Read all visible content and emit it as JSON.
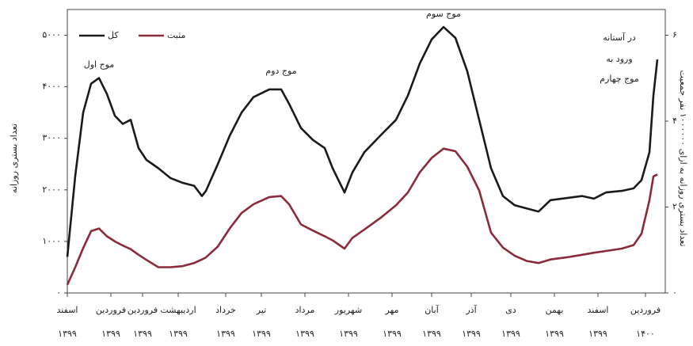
{
  "chart_data": {
    "type": "line",
    "legend": "top-left",
    "y_label": "تعداد بستری روزانه",
    "y2_label": "تعداد بستری روزانه به ازای ۱۰۰۰۰۰۰ نفر جمعیت",
    "annotations": [
      "موج اول",
      "موج دوم",
      "موج سوم",
      "در آستانه",
      "ورود به",
      "موج چهارم"
    ],
    "x": [
      0,
      2,
      4,
      6,
      8,
      10,
      12,
      14,
      16,
      18,
      20,
      23,
      26,
      29,
      32,
      34,
      35,
      38,
      41,
      44,
      47,
      51,
      54,
      56,
      59,
      62,
      65,
      67,
      70,
      72,
      75,
      79,
      83,
      86,
      89,
      92,
      95,
      98,
      101,
      104,
      107,
      110,
      113,
      116,
      119,
      122,
      126,
      130,
      133,
      136,
      140,
      143,
      145,
      147,
      148,
      149
    ],
    "xlim": [
      0,
      149
    ],
    "xticks": [
      {
        "value": 0,
        "label": "اسفند"
      },
      {
        "value": 11,
        "label": "فروردین"
      },
      {
        "value": 19,
        "label": "فروردین"
      },
      {
        "value": 28,
        "label": "اردیبهشت"
      },
      {
        "value": 40,
        "label": "خرداد"
      },
      {
        "value": 49,
        "label": "تیر"
      },
      {
        "value": 60,
        "label": "مرداد"
      },
      {
        "value": 71,
        "label": "شهریور"
      },
      {
        "value": 82,
        "label": "مهر"
      },
      {
        "value": 92,
        "label": "آبان"
      },
      {
        "value": 102,
        "label": "آذر"
      },
      {
        "value": 112,
        "label": "دی"
      },
      {
        "value": 123,
        "label": "بهمن"
      },
      {
        "value": 134,
        "label": "اسفند"
      },
      {
        "value": 146,
        "label": "فروردین"
      }
    ],
    "xtick_years": [
      "۱۳۹۹",
      "۱۳۹۹",
      "۱۳۹۹",
      "۱۳۹۹",
      "۱۳۹۹",
      "۱۳۹۹",
      "۱۳۹۹",
      "۱۳۹۹",
      "۱۳۹۹",
      "۱۳۹۹",
      "۱۳۹۹",
      "۱۳۹۹",
      "۱۳۹۹",
      "۱۳۹۹",
      "۱۴۰۰"
    ],
    "ylim": [
      0,
      5500
    ],
    "yticks": [
      {
        "value": 0,
        "label": "۰"
      },
      {
        "value": 1000,
        "label": "۱۰۰۰"
      },
      {
        "value": 2000,
        "label": "۲۰۰۰"
      },
      {
        "value": 3000,
        "label": "۳۰۰۰"
      },
      {
        "value": 4000,
        "label": "۴۰۰۰"
      },
      {
        "value": 5000,
        "label": "۵۰۰۰"
      }
    ],
    "y2lim": [
      0,
      6.6
    ],
    "y2ticks": [
      {
        "value": 0,
        "label": "۰"
      },
      {
        "value": 2,
        "label": "۲"
      },
      {
        "value": 4,
        "label": "۴"
      },
      {
        "value": 6,
        "label": "۶"
      }
    ],
    "series": [
      {
        "name": "کل",
        "color": "#1a1a1a",
        "values": [
          700,
          2270,
          3500,
          4060,
          4170,
          3860,
          3440,
          3280,
          3360,
          2810,
          2580,
          2420,
          2230,
          2140,
          2080,
          1880,
          1980,
          2500,
          3050,
          3500,
          3800,
          3950,
          3950,
          3670,
          3200,
          2970,
          2810,
          2420,
          1950,
          2340,
          2730,
          3050,
          3360,
          3830,
          4450,
          4920,
          5160,
          4950,
          4300,
          3360,
          2420,
          1880,
          1700,
          1640,
          1580,
          1800,
          1840,
          1880,
          1830,
          1950,
          1980,
          2030,
          2190,
          2730,
          3830,
          4530
        ]
      },
      {
        "name": "مثبت",
        "color": "#8b2a3a",
        "values": [
          160,
          500,
          870,
          1200,
          1250,
          1100,
          1000,
          920,
          850,
          740,
          640,
          500,
          500,
          520,
          580,
          650,
          690,
          900,
          1250,
          1550,
          1720,
          1860,
          1880,
          1720,
          1330,
          1210,
          1100,
          1020,
          860,
          1070,
          1230,
          1450,
          1700,
          1950,
          2340,
          2620,
          2800,
          2750,
          2450,
          1990,
          1170,
          880,
          720,
          620,
          580,
          650,
          690,
          740,
          780,
          815,
          860,
          930,
          1150,
          1800,
          2260,
          2300
        ]
      }
    ]
  }
}
